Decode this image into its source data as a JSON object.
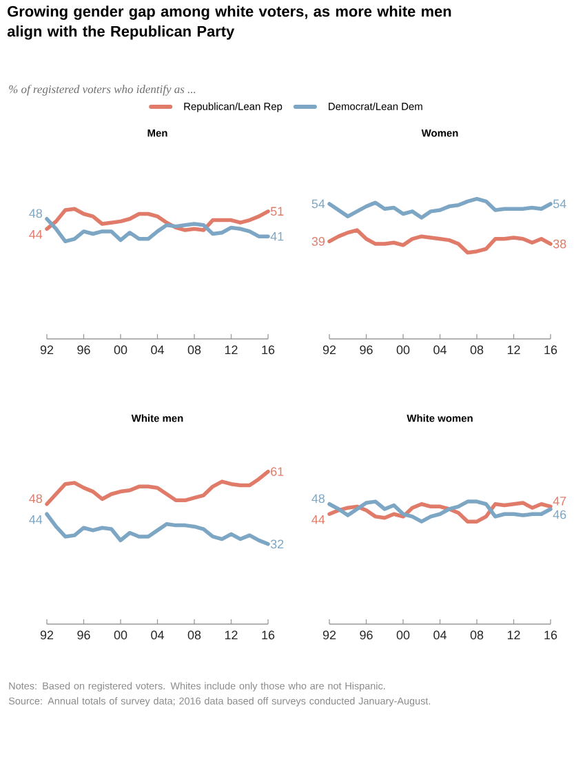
{
  "chart_data": [
    {
      "type": "other",
      "title": "Growing gender gap among white voters, as more white men align with the Republican Party",
      "subtitle": "% of registered voters who identify as ...",
      "annotations": [
        "Notes: Based on registered voters. Whites include only those who are not Hispanic.",
        "Source: Annual totals of survey data; 2016 data based off surveys conducted January-August."
      ]
    },
    {
      "type": "line",
      "title": "Men",
      "x": [
        1992,
        1993,
        1994,
        1995,
        1996,
        1997,
        1998,
        1999,
        2000,
        2001,
        2002,
        2003,
        2004,
        2005,
        2006,
        2007,
        2008,
        2009,
        2010,
        2011,
        2012,
        2013,
        2014,
        2015,
        2016
      ],
      "xlim": [
        1992,
        2016
      ],
      "xticks": [
        {
          "value": 1992,
          "label": "92"
        },
        {
          "value": 1996,
          "label": "96"
        },
        {
          "value": 2000,
          "label": "00"
        },
        {
          "value": 2004,
          "label": "04"
        },
        {
          "value": 2008,
          "label": "08"
        },
        {
          "value": 2012,
          "label": "12"
        },
        {
          "value": 2016,
          "label": "16"
        }
      ],
      "tick_labels": "x",
      "legend": "top",
      "series": [
        {
          "name": "Republican/Lean Rep",
          "color": "#e07b6a",
          "values": [
            44,
            47,
            51.5,
            52,
            50,
            49,
            46,
            46.5,
            47,
            48,
            50,
            50,
            49,
            46.5,
            44.5,
            43.5,
            44,
            43.5,
            47.5,
            47.5,
            47.5,
            46.5,
            47.5,
            49,
            51
          ],
          "value_labels": [
            "44",
            null,
            null,
            null,
            null,
            null,
            null,
            null,
            null,
            null,
            null,
            null,
            null,
            null,
            null,
            null,
            null,
            null,
            null,
            null,
            null,
            null,
            null,
            null,
            "51"
          ]
        },
        {
          "name": "Democrat/Lean Dem",
          "color": "#7ca6c4",
          "values": [
            48,
            44,
            39,
            40,
            43,
            42,
            43,
            43,
            39.5,
            42.5,
            40,
            40,
            43,
            45.5,
            45,
            45.5,
            46,
            45.5,
            42,
            42.5,
            44.5,
            44,
            43,
            41,
            41
          ],
          "value_labels": [
            "48",
            null,
            null,
            null,
            null,
            null,
            null,
            null,
            null,
            null,
            null,
            null,
            null,
            null,
            null,
            null,
            null,
            null,
            null,
            null,
            null,
            null,
            null,
            null,
            "41"
          ]
        }
      ]
    },
    {
      "type": "line",
      "title": "Women",
      "x": [
        1992,
        1993,
        1994,
        1995,
        1996,
        1997,
        1998,
        1999,
        2000,
        2001,
        2002,
        2003,
        2004,
        2005,
        2006,
        2007,
        2008,
        2009,
        2010,
        2011,
        2012,
        2013,
        2014,
        2015,
        2016
      ],
      "xlim": [
        1992,
        2016
      ],
      "xticks": [
        {
          "value": 1992,
          "label": "92"
        },
        {
          "value": 1996,
          "label": "96"
        },
        {
          "value": 2000,
          "label": "00"
        },
        {
          "value": 2004,
          "label": "04"
        },
        {
          "value": 2008,
          "label": "08"
        },
        {
          "value": 2012,
          "label": "12"
        },
        {
          "value": 2016,
          "label": "16"
        }
      ],
      "tick_labels": "x",
      "series": [
        {
          "color": "#e07b6a",
          "values": [
            39,
            41,
            42.5,
            43.5,
            40,
            38,
            38,
            38.5,
            37.5,
            40,
            41,
            40.5,
            40,
            39.5,
            38,
            34.5,
            35,
            36,
            40,
            40,
            40.5,
            40,
            38.5,
            40,
            38
          ],
          "value_labels": [
            "39",
            null,
            null,
            null,
            null,
            null,
            null,
            null,
            null,
            null,
            null,
            null,
            null,
            null,
            null,
            null,
            null,
            null,
            null,
            null,
            null,
            null,
            null,
            null,
            "38"
          ]
        },
        {
          "color": "#7ca6c4",
          "values": [
            54,
            51.5,
            49,
            51,
            53,
            54.5,
            52,
            52.5,
            50,
            51,
            48.5,
            51,
            51.5,
            53,
            53.5,
            55,
            56,
            55,
            51.5,
            52,
            52,
            52,
            52.5,
            52,
            54
          ],
          "value_labels": [
            "54",
            null,
            null,
            null,
            null,
            null,
            null,
            null,
            null,
            null,
            null,
            null,
            null,
            null,
            null,
            null,
            null,
            null,
            null,
            null,
            null,
            null,
            null,
            null,
            "54"
          ]
        }
      ]
    },
    {
      "type": "line",
      "title": "White men",
      "x": [
        1992,
        1993,
        1994,
        1995,
        1996,
        1997,
        1998,
        1999,
        2000,
        2001,
        2002,
        2003,
        2004,
        2005,
        2006,
        2007,
        2008,
        2009,
        2010,
        2011,
        2012,
        2013,
        2014,
        2015,
        2016
      ],
      "xlim": [
        1992,
        2016
      ],
      "xticks": [
        {
          "value": 1992,
          "label": "92"
        },
        {
          "value": 1996,
          "label": "96"
        },
        {
          "value": 2000,
          "label": "00"
        },
        {
          "value": 2004,
          "label": "04"
        },
        {
          "value": 2008,
          "label": "08"
        },
        {
          "value": 2012,
          "label": "12"
        },
        {
          "value": 2016,
          "label": "16"
        }
      ],
      "tick_labels": "x",
      "series": [
        {
          "color": "#e07b6a",
          "values": [
            48,
            52,
            56,
            56.5,
            54.5,
            53,
            50,
            52,
            53,
            53.5,
            55,
            55,
            54.5,
            52,
            49.5,
            49.5,
            50.5,
            51.5,
            55,
            57,
            56,
            55.5,
            55.5,
            58,
            61
          ],
          "value_labels": [
            "48",
            null,
            null,
            null,
            null,
            null,
            null,
            null,
            null,
            null,
            null,
            null,
            null,
            null,
            null,
            null,
            null,
            null,
            null,
            null,
            null,
            null,
            null,
            null,
            "61"
          ]
        },
        {
          "color": "#7ca6c4",
          "values": [
            44,
            39,
            35,
            35.5,
            38.5,
            37.5,
            38.5,
            38,
            33.5,
            36.5,
            35,
            35,
            37.5,
            40,
            39.5,
            39.5,
            39,
            38,
            35,
            34,
            36,
            34,
            35.5,
            33.5,
            32
          ],
          "value_labels": [
            "44",
            null,
            null,
            null,
            null,
            null,
            null,
            null,
            null,
            null,
            null,
            null,
            null,
            null,
            null,
            null,
            null,
            null,
            null,
            null,
            null,
            null,
            null,
            null,
            "32"
          ]
        }
      ]
    },
    {
      "type": "line",
      "title": "White women",
      "x": [
        1992,
        1993,
        1994,
        1995,
        1996,
        1997,
        1998,
        1999,
        2000,
        2001,
        2002,
        2003,
        2004,
        2005,
        2006,
        2007,
        2008,
        2009,
        2010,
        2011,
        2012,
        2013,
        2014,
        2015,
        2016
      ],
      "xlim": [
        1992,
        2016
      ],
      "xticks": [
        {
          "value": 1992,
          "label": "92"
        },
        {
          "value": 1996,
          "label": "96"
        },
        {
          "value": 2000,
          "label": "00"
        },
        {
          "value": 2004,
          "label": "04"
        },
        {
          "value": 2008,
          "label": "08"
        },
        {
          "value": 2012,
          "label": "12"
        },
        {
          "value": 2016,
          "label": "16"
        }
      ],
      "tick_labels": "x",
      "series": [
        {
          "color": "#e07b6a",
          "values": [
            44,
            45.5,
            46.5,
            47,
            45.5,
            43,
            42.5,
            44,
            43,
            46.5,
            48,
            47,
            47,
            46,
            44.5,
            41,
            41,
            43,
            48,
            47.5,
            48,
            48.5,
            46.5,
            48,
            47
          ],
          "value_labels": [
            "44",
            null,
            null,
            null,
            null,
            null,
            null,
            null,
            null,
            null,
            null,
            null,
            null,
            null,
            null,
            null,
            null,
            null,
            null,
            null,
            null,
            null,
            null,
            null,
            "47"
          ]
        },
        {
          "color": "#7ca6c4",
          "values": [
            48,
            46,
            43.5,
            46,
            48.5,
            49,
            46,
            47.5,
            44,
            43,
            41,
            43,
            44,
            46,
            47,
            49,
            49,
            48,
            43,
            44,
            44,
            43.5,
            44,
            44,
            46
          ],
          "value_labels": [
            "48",
            null,
            null,
            null,
            null,
            null,
            null,
            null,
            null,
            null,
            null,
            null,
            null,
            null,
            null,
            null,
            null,
            null,
            null,
            null,
            null,
            null,
            null,
            null,
            "46"
          ]
        }
      ]
    }
  ]
}
